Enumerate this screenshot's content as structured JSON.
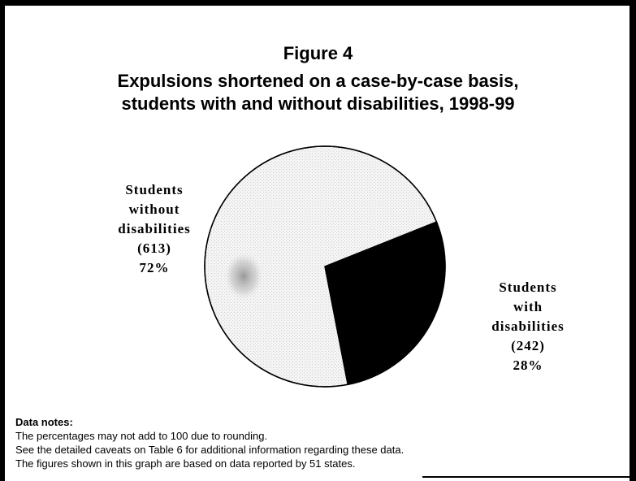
{
  "figure_label": "Figure 4",
  "title_line1": "Expulsions shortened on a case-by-case basis,",
  "title_line2": "students with and without disabilities, 1998-99",
  "chart_data": {
    "type": "pie",
    "title": "Figure 4 Expulsions shortened on a case-by-case basis, students with and without disabilities, 1998-99",
    "slices": [
      {
        "name_lines": [
          "Students",
          "with",
          "disabilities"
        ],
        "count": 242,
        "count_label": "(242)",
        "percent": 28,
        "percent_label": "28%",
        "color": "#000000"
      },
      {
        "name_lines": [
          "Students",
          "without",
          "disabilities"
        ],
        "count": 613,
        "count_label": "(613)",
        "percent": 72,
        "percent_label": "72%",
        "color": "#f3f3f3"
      }
    ],
    "start_angle_deg": 90,
    "direction": "clockwise"
  },
  "notes": {
    "heading": "Data notes:",
    "lines": [
      "The percentages may not add to 100 due to rounding.",
      "See the detailed caveats on Table 6 for additional information regarding these data.",
      "The figures shown in this graph are based on data reported by 51 states."
    ]
  }
}
